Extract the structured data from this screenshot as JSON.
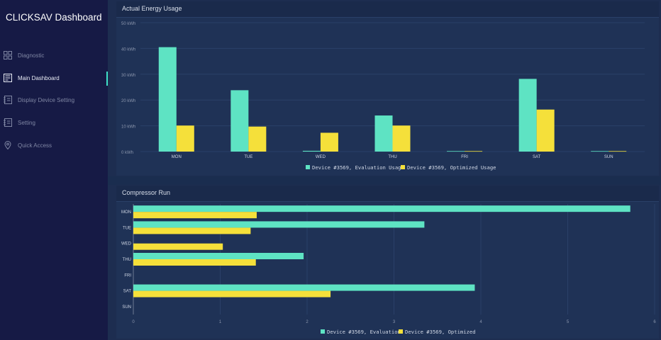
{
  "app": {
    "title": "CLICKSAV Dashboard"
  },
  "sidebar": {
    "items": [
      {
        "label": "Diagnostic",
        "icon": "grid-icon",
        "active": false
      },
      {
        "label": "Main Dashboard",
        "icon": "dashboard-icon",
        "active": true
      },
      {
        "label": "Display Device Setting",
        "icon": "device-icon",
        "active": false
      },
      {
        "label": "Setting",
        "icon": "settings-icon",
        "active": false
      },
      {
        "label": "Quick Access",
        "icon": "location-pin-icon",
        "active": false
      }
    ]
  },
  "colors": {
    "series1": "#5ee3c3",
    "series2": "#f5e03a",
    "accent": "#3ee0c7"
  },
  "panels": {
    "energy": {
      "title": "Actual Energy Usage"
    },
    "compressor": {
      "title": "Compressor Run"
    }
  },
  "chart_data": [
    {
      "type": "bar",
      "title": "Actual Energy Usage",
      "categories": [
        "MON",
        "TUE",
        "WED",
        "THU",
        "FRI",
        "SAT",
        "SUN"
      ],
      "series": [
        {
          "name": "Device #3569, Evaluation Usage",
          "values": [
            40.5,
            23.8,
            0.3,
            14.0,
            0.2,
            28.2,
            0.2
          ]
        },
        {
          "name": "Device #3569, Optimized Usage",
          "values": [
            10.1,
            9.7,
            7.3,
            10.1,
            0.2,
            16.3,
            0.2
          ]
        }
      ],
      "yticks": [
        "0 kWh",
        "10 kWh",
        "20 kWh",
        "30 kWh",
        "40 kWh",
        "50 kWh"
      ],
      "ylim": [
        0,
        50
      ],
      "legend": "bottom"
    },
    {
      "type": "bar",
      "orientation": "horizontal",
      "title": "Compressor Run",
      "categories": [
        "MON",
        "TUE",
        "WED",
        "THU",
        "FRI",
        "SAT",
        "SUN"
      ],
      "series": [
        {
          "name": "Device #3569, Evaluation",
          "values": [
            5.72,
            3.35,
            0,
            1.96,
            0,
            3.93,
            0
          ]
        },
        {
          "name": "Device #3569, Optimized",
          "values": [
            1.42,
            1.35,
            1.03,
            1.41,
            0,
            2.27,
            0
          ]
        }
      ],
      "xticks": [
        "0",
        "1",
        "2",
        "3",
        "4",
        "5",
        "6"
      ],
      "xlim": [
        0,
        6
      ],
      "legend": "bottom"
    }
  ]
}
